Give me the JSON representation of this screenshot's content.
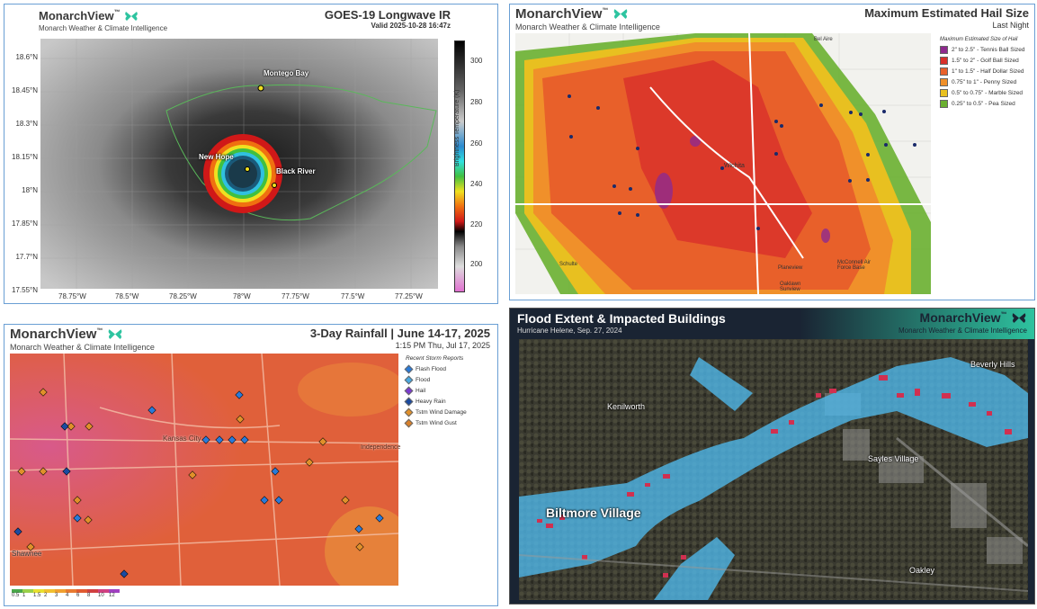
{
  "brand": {
    "name": "MonarchView",
    "tm": "™",
    "tagline": "Monarch Weather & Climate Intelligence"
  },
  "colors": {
    "accent": "#2ec4a0",
    "panel_border": "#6a9fd4",
    "flood_blue": "#4fb6e8"
  },
  "ir_panel": {
    "title": "GOES-19 Longwave IR",
    "valid": "Valid 2025-10-28 16:47z",
    "lat_labels": [
      "18.6°N",
      "18.45°N",
      "18.3°N",
      "18.15°N",
      "18°N",
      "17.85°N",
      "17.7°N",
      "17.55°N"
    ],
    "lon_labels": [
      "78.75°W",
      "78.5°W",
      "78.25°W",
      "78°W",
      "77.75°W",
      "77.5°W",
      "77.25°W"
    ],
    "colorbar_ticks": [
      "300",
      "280",
      "260",
      "240",
      "220",
      "200"
    ],
    "colorbar_label": "Brightness Temperature (K)",
    "places": {
      "montego": "Montego Bay",
      "newhope": "New Hope",
      "blackriver": "Black River"
    }
  },
  "hail_panel": {
    "title": "Maximum Estimated Hail Size",
    "subtitle": "Last Night",
    "legend_title": "Maximum Estimated Size of Hail",
    "legend": [
      {
        "label": "2\" to 2.5\" - Tennis Ball Sized",
        "color": "#8e2a8e"
      },
      {
        "label": "1.5\" to 2\" - Golf Ball Sized",
        "color": "#d8302a"
      },
      {
        "label": "1\" to 1.5\" - Half Dollar Sized",
        "color": "#e8602a"
      },
      {
        "label": "0.75\" to 1\" - Penny Sized",
        "color": "#f0902a"
      },
      {
        "label": "0.5\" to 0.75\" - Marble Sized",
        "color": "#e8c020"
      },
      {
        "label": "0.25\" to 0.5\" - Pea Sized",
        "color": "#6ab030"
      }
    ],
    "places": {
      "belaire": "Bel Aire",
      "wichita": "Wichita",
      "schulte": "Schulte",
      "oaklawn": "Oaklawn Sunview",
      "mcconnell": "McConnell Air Force Base",
      "derby": "Planeview"
    }
  },
  "rain_panel": {
    "title": "3-Day Rainfall | June 14-17, 2025",
    "timestamp": "1:15 PM Thu, Jul 17, 2025",
    "reports_title": "Recent Storm Reports",
    "reports": [
      {
        "label": "Flash Flood",
        "color": "#2a7ad8"
      },
      {
        "label": "Flood",
        "color": "#4aa8e0"
      },
      {
        "label": "Hail",
        "color": "#7a3ad0"
      },
      {
        "label": "Heavy Rain",
        "color": "#1a4aa0"
      },
      {
        "label": "Tstm Wind Damage",
        "color": "#e0902a"
      },
      {
        "label": "Tstm Wind Gust",
        "color": "#d8802a"
      }
    ],
    "scale_values": [
      "0.5",
      "1",
      "1.5",
      "2",
      "3",
      "4",
      "6",
      "8",
      "10",
      "12"
    ],
    "scale_colors": [
      "#4aa84a",
      "#9ad04a",
      "#e8e030",
      "#f0c030",
      "#f0a030",
      "#e87a30",
      "#e05a30",
      "#d04040",
      "#d04080",
      "#a040c0"
    ],
    "places": {
      "kc": "Kansas City",
      "shawnee": "Shawnee",
      "independence": "Independence"
    }
  },
  "flood_panel": {
    "title": "Flood Extent & Impacted Buildings",
    "subtitle": "Hurricane Helene, Sep. 27, 2024",
    "places": {
      "kenilworth": "Kenilworth",
      "beverly": "Beverly Hills",
      "sayles": "Sayles Village",
      "biltmore": "Biltmore Village",
      "oakley": "Oakley"
    }
  }
}
